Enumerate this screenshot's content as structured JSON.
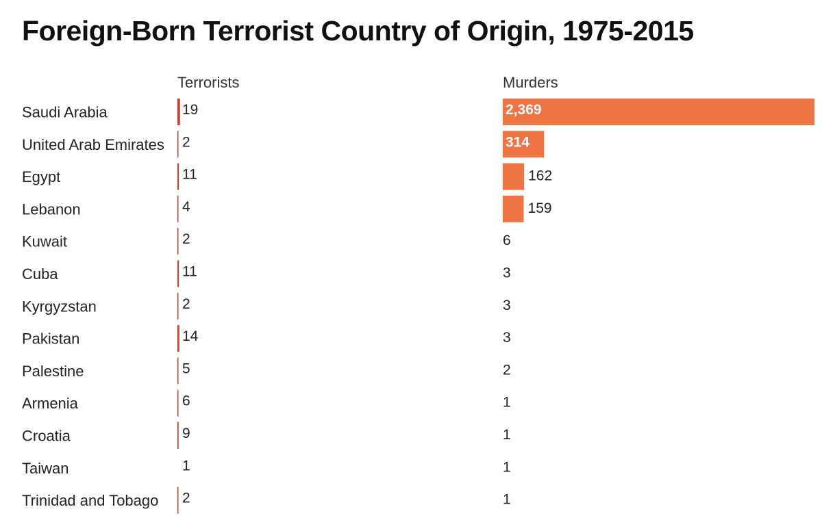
{
  "chart_data": {
    "type": "bar",
    "title": "Foreign-Born Terrorist Country of Origin, 1975-2015",
    "categories": [
      "Saudi Arabia",
      "United Arab Emirates",
      "Egypt",
      "Lebanon",
      "Kuwait",
      "Cuba",
      "Kyrgyzstan",
      "Pakistan",
      "Palestine",
      "Armenia",
      "Croatia",
      "Taiwan",
      "Trinidad and Tobago"
    ],
    "series": [
      {
        "name": "Terrorists",
        "values": [
          19,
          2,
          11,
          4,
          2,
          11,
          2,
          14,
          5,
          6,
          9,
          1,
          2
        ],
        "labels": [
          "19",
          "2",
          "11",
          "4",
          "2",
          "11",
          "2",
          "14",
          "5",
          "6",
          "9",
          "1",
          "2"
        ]
      },
      {
        "name": "Murders",
        "values": [
          2369,
          314,
          162,
          159,
          6,
          3,
          3,
          3,
          2,
          1,
          1,
          1,
          1
        ],
        "labels": [
          "2,369",
          "314",
          "162",
          "159",
          "6",
          "3",
          "3",
          "3",
          "2",
          "1",
          "1",
          "1",
          "1"
        ]
      }
    ],
    "colors": {
      "terrorists": "#d8402b",
      "murders": "#ee7444"
    },
    "legend": "column headers"
  }
}
